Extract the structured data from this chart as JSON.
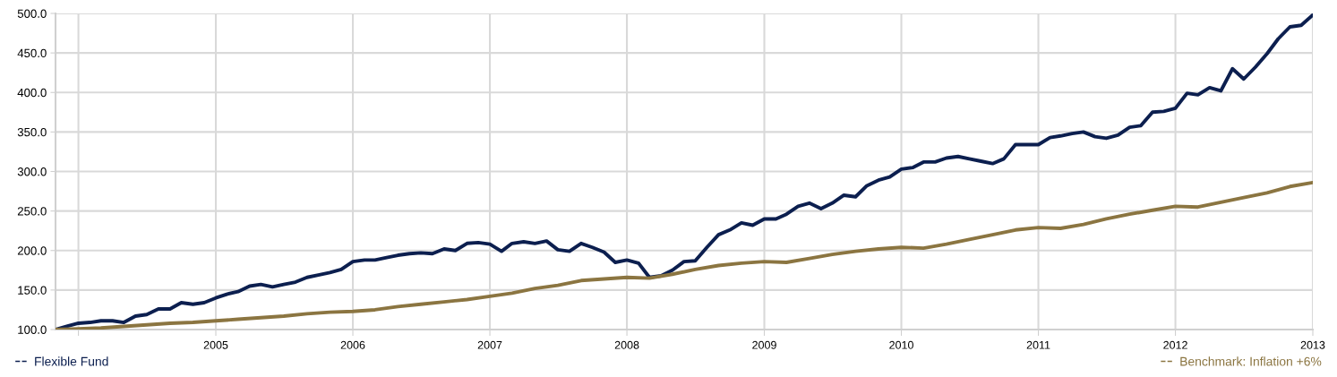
{
  "chart_data": {
    "type": "line",
    "xlim": [
      "2003-11-01",
      "2013-01-01"
    ],
    "xticks": [
      {
        "value": "2004-01-01",
        "label": null
      },
      {
        "value": "2005-01-01",
        "label": "2005"
      },
      {
        "value": "2006-01-01",
        "label": "2006"
      },
      {
        "value": "2007-01-01",
        "label": "2007"
      },
      {
        "value": "2008-01-01",
        "label": "2008"
      },
      {
        "value": "2009-01-01",
        "label": "2009"
      },
      {
        "value": "2010-01-01",
        "label": "2010"
      },
      {
        "value": "2011-01-01",
        "label": "2011"
      },
      {
        "value": "2012-01-01",
        "label": "2012"
      },
      {
        "value": "2013-01-01",
        "label": "2013"
      }
    ],
    "ylim": [
      100,
      500
    ],
    "yticks": [
      {
        "value": 100,
        "label": "100.0"
      },
      {
        "value": 150,
        "label": "150.0"
      },
      {
        "value": 200,
        "label": "200.0"
      },
      {
        "value": 250,
        "label": "250.0"
      },
      {
        "value": 300,
        "label": "300.0"
      },
      {
        "value": 350,
        "label": "350.0"
      },
      {
        "value": 400,
        "label": "400.0"
      },
      {
        "value": 450,
        "label": "450.0"
      },
      {
        "value": 500,
        "label": "500.0"
      }
    ],
    "grid": true,
    "legend": "bottom",
    "marker": "none",
    "line_style": "solid",
    "series": [
      {
        "name": "Flexible Fund",
        "color": "#0c1f4f",
        "x": [
          "2003-11",
          "2003-12",
          "2004-01",
          "2004-02",
          "2004-03",
          "2004-04",
          "2004-05",
          "2004-06",
          "2004-07",
          "2004-08",
          "2004-09",
          "2004-10",
          "2004-11",
          "2004-12",
          "2005-01",
          "2005-02",
          "2005-03",
          "2005-04",
          "2005-05",
          "2005-06",
          "2005-07",
          "2005-08",
          "2005-09",
          "2005-10",
          "2005-11",
          "2005-12",
          "2006-01",
          "2006-02",
          "2006-03",
          "2006-04",
          "2006-05",
          "2006-06",
          "2006-07",
          "2006-08",
          "2006-09",
          "2006-10",
          "2006-11",
          "2006-12",
          "2007-01",
          "2007-02",
          "2007-03",
          "2007-04",
          "2007-05",
          "2007-06",
          "2007-07",
          "2007-08",
          "2007-09",
          "2007-10",
          "2007-11",
          "2007-12",
          "2008-01",
          "2008-02",
          "2008-03",
          "2008-04",
          "2008-05",
          "2008-06",
          "2008-07",
          "2008-08",
          "2008-09",
          "2008-10",
          "2008-11",
          "2008-12",
          "2009-01",
          "2009-02",
          "2009-03",
          "2009-04",
          "2009-05",
          "2009-06",
          "2009-07",
          "2009-08",
          "2009-09",
          "2009-10",
          "2009-11",
          "2009-12",
          "2010-01",
          "2010-02",
          "2010-03",
          "2010-04",
          "2010-05",
          "2010-06",
          "2010-07",
          "2010-08",
          "2010-09",
          "2010-10",
          "2010-11",
          "2010-12",
          "2011-01",
          "2011-02",
          "2011-03",
          "2011-04",
          "2011-05",
          "2011-06",
          "2011-07",
          "2011-08",
          "2011-09",
          "2011-10",
          "2011-11",
          "2011-12",
          "2012-01",
          "2012-02",
          "2012-03",
          "2012-04",
          "2012-05",
          "2012-06",
          "2012-07",
          "2012-08",
          "2012-09",
          "2012-10",
          "2012-11",
          "2012-12",
          "2013-01"
        ],
        "values": [
          100,
          104,
          108,
          109,
          111,
          111,
          109,
          117,
          119,
          126,
          126,
          134,
          132,
          134,
          140,
          145,
          148,
          155,
          157,
          154,
          157,
          160,
          166,
          169,
          172,
          176,
          186,
          188,
          188,
          191,
          194,
          196,
          197,
          196,
          202,
          200,
          209,
          210,
          208,
          199,
          209,
          211,
          209,
          212,
          201,
          199,
          209,
          204,
          198,
          185,
          188,
          184,
          166,
          168,
          175,
          186,
          187,
          204,
          220,
          226,
          235,
          232,
          240,
          240,
          246,
          256,
          260,
          253,
          260,
          270,
          268,
          282,
          289,
          293,
          303,
          305,
          312,
          312,
          317,
          319,
          316,
          313,
          310,
          316,
          334,
          334,
          334,
          343,
          345,
          348,
          350,
          344,
          342,
          346,
          356,
          358,
          375,
          376,
          380,
          399,
          397,
          406,
          402,
          430,
          417,
          432,
          449,
          468,
          483,
          485,
          498
        ]
      },
      {
        "name": "Benchmark: Inflation +6%",
        "color": "#8b7541",
        "x": [
          "2003-11",
          "2004-01",
          "2004-03",
          "2004-05",
          "2004-07",
          "2004-09",
          "2004-11",
          "2005-01",
          "2005-03",
          "2005-05",
          "2005-07",
          "2005-09",
          "2005-11",
          "2006-01",
          "2006-03",
          "2006-05",
          "2006-07",
          "2006-09",
          "2006-11",
          "2007-01",
          "2007-03",
          "2007-05",
          "2007-07",
          "2007-09",
          "2007-11",
          "2008-01",
          "2008-03",
          "2008-05",
          "2008-07",
          "2008-09",
          "2008-11",
          "2009-01",
          "2009-03",
          "2009-05",
          "2009-07",
          "2009-09",
          "2009-11",
          "2010-01",
          "2010-03",
          "2010-05",
          "2010-07",
          "2010-09",
          "2010-11",
          "2011-01",
          "2011-03",
          "2011-05",
          "2011-07",
          "2011-09",
          "2011-11",
          "2012-01",
          "2012-03",
          "2012-05",
          "2012-07",
          "2012-09",
          "2012-11",
          "2013-01"
        ],
        "values": [
          100,
          101,
          102,
          104,
          106,
          108,
          109,
          111,
          113,
          115,
          117,
          120,
          122,
          123,
          125,
          129,
          132,
          135,
          138,
          142,
          146,
          152,
          156,
          162,
          164,
          166,
          165,
          170,
          176,
          181,
          184,
          186,
          185,
          190,
          195,
          199,
          202,
          204,
          203,
          208,
          214,
          220,
          226,
          229,
          228,
          233,
          240,
          246,
          251,
          256,
          255,
          261,
          267,
          273,
          281,
          286
        ]
      }
    ]
  }
}
